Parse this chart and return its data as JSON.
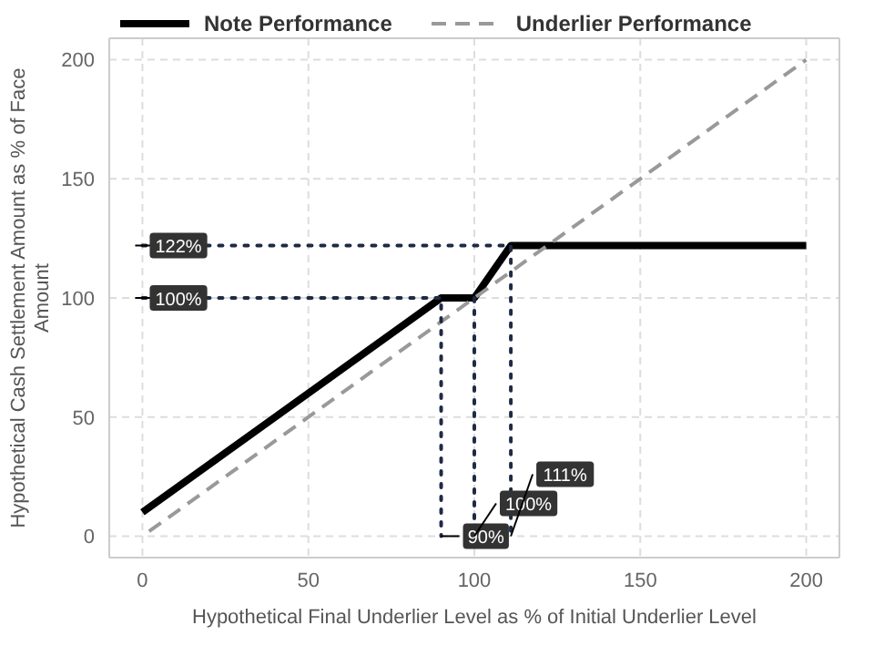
{
  "chart_data": {
    "type": "line",
    "xlabel": "Hypothetical Final Underlier Level as % of Initial Underlier Level",
    "ylabel": "Hypothetical Cash Settlement Amount as % of Face Amount",
    "series": [
      {
        "name": "Note Performance",
        "color": "#000000",
        "x": [
          0,
          90,
          100,
          111,
          200
        ],
        "values": [
          10,
          100,
          100,
          122,
          122
        ]
      },
      {
        "name": "Underlier Performance",
        "color": "#999999",
        "line_style": "dashed",
        "x": [
          2,
          200
        ],
        "values": [
          2,
          200
        ]
      },
      {
        "color": "#1f2a44",
        "line_style": "dotted",
        "x": [
          0,
          111,
          111
        ],
        "values": [
          122,
          122,
          0
        ]
      },
      {
        "color": "#1f2a44",
        "line_style": "dotted",
        "x": [
          0,
          90,
          90
        ],
        "values": [
          100,
          100,
          0
        ]
      },
      {
        "color": "#1f2a44",
        "line_style": "dotted",
        "x": [
          100,
          100
        ],
        "values": [
          100,
          0
        ]
      }
    ],
    "annotations": [
      {
        "text": "122%",
        "x": 0,
        "y": 122
      },
      {
        "text": "100%",
        "x": 0,
        "y": 100
      },
      {
        "text": "90%",
        "x": 90,
        "y": 0
      },
      {
        "text": "100%",
        "x": 100,
        "y": 0
      },
      {
        "text": "111%",
        "x": 111,
        "y": 0
      }
    ],
    "xlim": [
      -10,
      210
    ],
    "ylim": [
      -9,
      209
    ],
    "xticks": [
      0,
      50,
      100,
      150,
      200
    ],
    "yticks": [
      0,
      50,
      100,
      150,
      200
    ],
    "grid": true,
    "legend": "top left",
    "marker": "none"
  }
}
